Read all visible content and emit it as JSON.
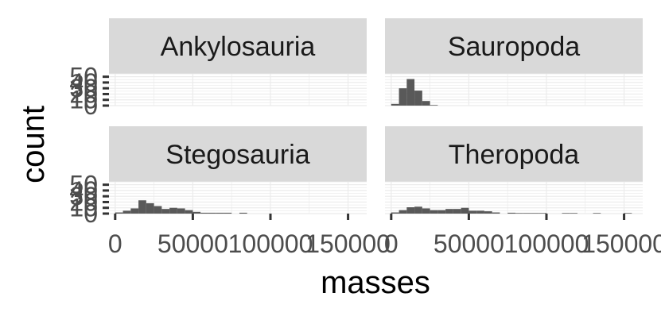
{
  "chart_data": {
    "type": "bar",
    "subtype": "faceted-histogram",
    "xlabel": "masses",
    "ylabel": "count",
    "xlim": [
      -4000,
      162000
    ],
    "ylim": [
      0,
      5.5
    ],
    "bin_width": 5000,
    "x_ticks": [
      0,
      50000,
      100000,
      150000
    ],
    "x_tick_labels": [
      "0",
      "50000",
      "100000",
      "150000"
    ],
    "y_ticks": [
      0,
      10,
      20,
      30,
      40,
      50
    ],
    "y_tick_labels": [
      "0",
      "10",
      "20",
      "30",
      "40",
      "50"
    ],
    "colors": {
      "bar": "#595959",
      "panel_bg": "#ffffff",
      "grid": "#ebebeb",
      "strip_bg": "#d9d9d9",
      "tick": "#333333"
    },
    "facets": [
      {
        "name": "Ankylosauria",
        "bins": []
      },
      {
        "name": "Sauropoda",
        "bins": [
          {
            "x": 2500,
            "count": 0.3
          },
          {
            "x": 7500,
            "count": 3.0
          },
          {
            "x": 12500,
            "count": 4.6
          },
          {
            "x": 17500,
            "count": 2.6
          },
          {
            "x": 22500,
            "count": 0.8
          },
          {
            "x": 27500,
            "count": 0.1
          }
        ]
      },
      {
        "name": "Stegosauria",
        "bins": [
          {
            "x": 2500,
            "count": 0.2
          },
          {
            "x": 7500,
            "count": 0.5
          },
          {
            "x": 12500,
            "count": 0.9
          },
          {
            "x": 17500,
            "count": 2.3
          },
          {
            "x": 22500,
            "count": 1.8
          },
          {
            "x": 27500,
            "count": 1.3
          },
          {
            "x": 32500,
            "count": 0.8
          },
          {
            "x": 37500,
            "count": 1.0
          },
          {
            "x": 42500,
            "count": 0.9
          },
          {
            "x": 47500,
            "count": 0.6
          },
          {
            "x": 52500,
            "count": 0.3
          },
          {
            "x": 57500,
            "count": 0.15
          },
          {
            "x": 62500,
            "count": 0.15
          },
          {
            "x": 67500,
            "count": 0.15
          },
          {
            "x": 72500,
            "count": 0.15
          },
          {
            "x": 82500,
            "count": 0.15
          }
        ]
      },
      {
        "name": "Theropoda",
        "bins": [
          {
            "x": 2500,
            "count": 0.2
          },
          {
            "x": 7500,
            "count": 0.6
          },
          {
            "x": 12500,
            "count": 1.1
          },
          {
            "x": 17500,
            "count": 1.2
          },
          {
            "x": 22500,
            "count": 0.9
          },
          {
            "x": 27500,
            "count": 0.6
          },
          {
            "x": 32500,
            "count": 0.6
          },
          {
            "x": 37500,
            "count": 0.8
          },
          {
            "x": 42500,
            "count": 0.8
          },
          {
            "x": 47500,
            "count": 1.0
          },
          {
            "x": 52500,
            "count": 0.5
          },
          {
            "x": 57500,
            "count": 0.5
          },
          {
            "x": 62500,
            "count": 0.4
          },
          {
            "x": 67500,
            "count": 0.2
          },
          {
            "x": 77500,
            "count": 0.15
          },
          {
            "x": 82500,
            "count": 0.1
          },
          {
            "x": 87500,
            "count": 0.1
          },
          {
            "x": 92500,
            "count": 0.1
          },
          {
            "x": 97500,
            "count": 0.1
          },
          {
            "x": 112500,
            "count": 0.1
          },
          {
            "x": 117500,
            "count": 0.1
          },
          {
            "x": 132500,
            "count": 0.1
          },
          {
            "x": 152500,
            "count": 0.1
          }
        ]
      }
    ]
  }
}
